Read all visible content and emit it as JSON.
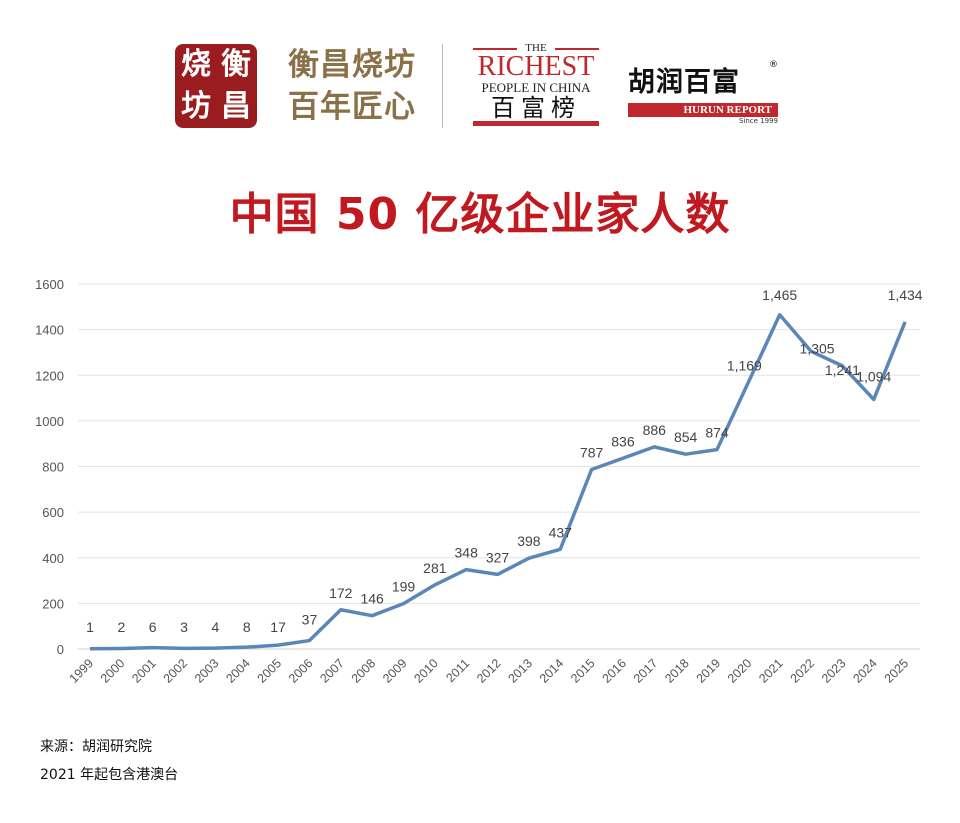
{
  "logos": {
    "seal_text": [
      "烧",
      "衡",
      "坊",
      "昌"
    ],
    "brand_line1": "衡昌烧坊",
    "brand_line2": "百年匠心",
    "richest_the": "THE",
    "richest_big": "RICHEST",
    "richest_people": "PEOPLE IN CHINA",
    "richest_cn": "百富榜",
    "hurun_cn": "胡润百富",
    "hurun_reg": "®",
    "hurun_report": "HURUN REPORT",
    "hurun_since": "Since 1999"
  },
  "chart_data": {
    "type": "line",
    "title": "中国 50 亿级企业家人数",
    "x": [
      "1999",
      "2000",
      "2001",
      "2002",
      "2003",
      "2004",
      "2005",
      "2006",
      "2007",
      "2008",
      "2009",
      "2010",
      "2011",
      "2012",
      "2013",
      "2014",
      "2015",
      "2016",
      "2017",
      "2018",
      "2019",
      "2020",
      "2021",
      "2022",
      "2023",
      "2024",
      "2025"
    ],
    "values": [
      1,
      2,
      6,
      3,
      4,
      8,
      17,
      37,
      172,
      146,
      199,
      281,
      348,
      327,
      398,
      437,
      787,
      836,
      886,
      854,
      874,
      1169,
      1465,
      1305,
      1241,
      1094,
      1434
    ],
    "data_labels": [
      "1",
      "2",
      "6",
      "3",
      "4",
      "8",
      "17",
      "37",
      "172",
      "146",
      "199",
      "281",
      "348",
      "327",
      "398",
      "437",
      "787",
      "836",
      "886",
      "854",
      "874",
      "1,169",
      "1,465",
      "1,305",
      "1,241",
      "1,094",
      "1,434"
    ],
    "ylim": [
      0,
      1600
    ],
    "yticks": [
      0,
      200,
      400,
      600,
      800,
      1000,
      1200,
      1400,
      1600
    ],
    "grid": true,
    "line_color": "#5b87b8",
    "xlabel": "",
    "ylabel": ""
  },
  "footer": {
    "source": "来源：胡润研究院",
    "note": "2021 年起包含港澳台"
  }
}
